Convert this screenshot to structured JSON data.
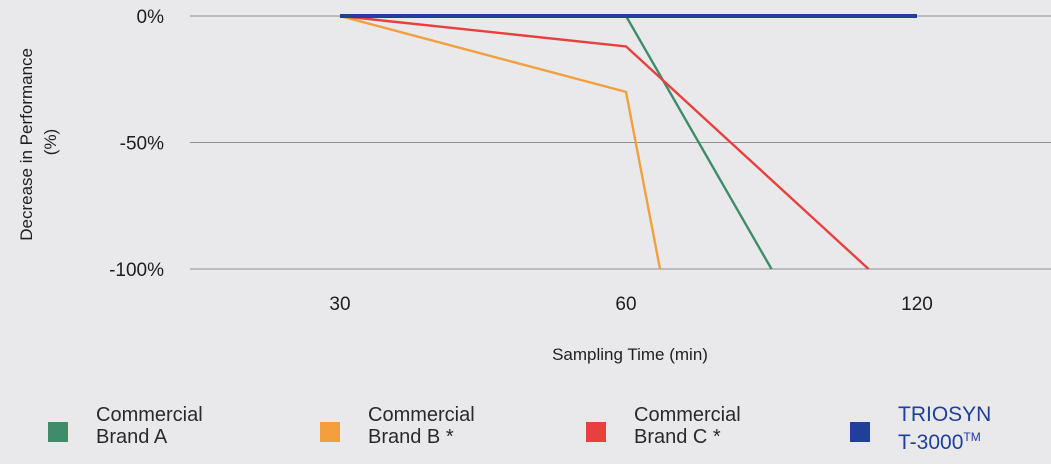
{
  "chart_data": {
    "type": "line",
    "xlabel": "Sampling Time  (min)",
    "ylabel": "Decrease in Performance (%)",
    "ylabel_lines": [
      "Decrease in Performance",
      "(%)"
    ],
    "x_ticks": [
      "30",
      "60",
      "120"
    ],
    "y_ticks": [
      "0%",
      "-50%",
      "-100%"
    ],
    "y_tick_values": [
      0,
      -50,
      -100
    ],
    "ylim": [
      -100,
      0
    ],
    "grid": "horizontal",
    "legend_position": "bottom",
    "series": [
      {
        "name": "Commercial Brand A",
        "color": "#3e8c69",
        "points": [
          {
            "x": 30,
            "y": 0
          },
          {
            "x": 60,
            "y": 0
          },
          {
            "x": 90,
            "y": -100
          }
        ]
      },
      {
        "name": "Commercial Brand B *",
        "color": "#f2a03d",
        "points": [
          {
            "x": 30,
            "y": 0
          },
          {
            "x": 60,
            "y": -30
          },
          {
            "x": 67,
            "y": -100
          }
        ]
      },
      {
        "name": "Commercial Brand C *",
        "color": "#e8403d",
        "points": [
          {
            "x": 30,
            "y": 0
          },
          {
            "x": 60,
            "y": -12
          },
          {
            "x": 110,
            "y": -100
          }
        ]
      },
      {
        "name": "TRIOSYN T-3000™",
        "color": "#1f3f9a",
        "points": [
          {
            "x": 30,
            "y": 0
          },
          {
            "x": 60,
            "y": 0
          },
          {
            "x": 120,
            "y": 0
          }
        ]
      }
    ]
  },
  "legend": {
    "items": [
      {
        "line1": "Commercial",
        "line2": "Brand A",
        "color": "#3e8c69"
      },
      {
        "line1": "Commercial",
        "line2": "Brand B *",
        "color": "#f2a03d"
      },
      {
        "line1": "Commercial",
        "line2": "Brand C *",
        "color": "#e8403d"
      },
      {
        "line1": "TRIOSYN",
        "line2": "T-3000",
        "tm": "TM",
        "color": "#1f3f9a"
      }
    ]
  }
}
